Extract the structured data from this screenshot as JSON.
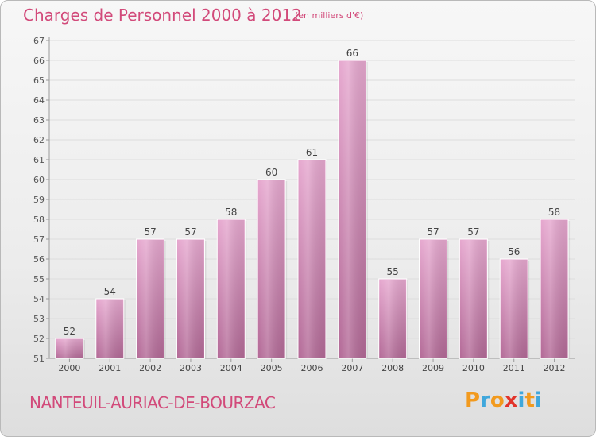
{
  "header": {
    "title": "Charges de Personnel 2000 à 2012",
    "units": "(en milliers d'€)"
  },
  "footer": {
    "location": "NANTEUIL-AURIAC-DE-BOURZAC",
    "logo": {
      "letters": [
        "P",
        "r",
        "o",
        "x",
        "i",
        "t",
        "i"
      ],
      "colors": [
        "#f29a1e",
        "#3fa7dc",
        "#f29a1e",
        "#e2342b",
        "#3fa7dc",
        "#f29a1e",
        "#3fa7dc"
      ]
    }
  },
  "colors": {
    "bar_light": "#e6a8cf",
    "bar_dark": "#b36a97",
    "text": "#d24a7a",
    "grid": "#dddddd"
  },
  "chart_data": {
    "type": "bar",
    "categories": [
      "2000",
      "2001",
      "2002",
      "2003",
      "2004",
      "2005",
      "2006",
      "2007",
      "2008",
      "2009",
      "2010",
      "2011",
      "2012"
    ],
    "values": [
      52,
      54,
      57,
      57,
      58,
      60,
      61,
      66,
      55,
      57,
      57,
      56,
      58
    ],
    "ylim": [
      51,
      67
    ],
    "yticks": [
      51,
      52,
      53,
      54,
      55,
      56,
      57,
      58,
      59,
      60,
      61,
      62,
      63,
      64,
      65,
      66,
      67
    ],
    "data_labels": true,
    "grid": true
  }
}
